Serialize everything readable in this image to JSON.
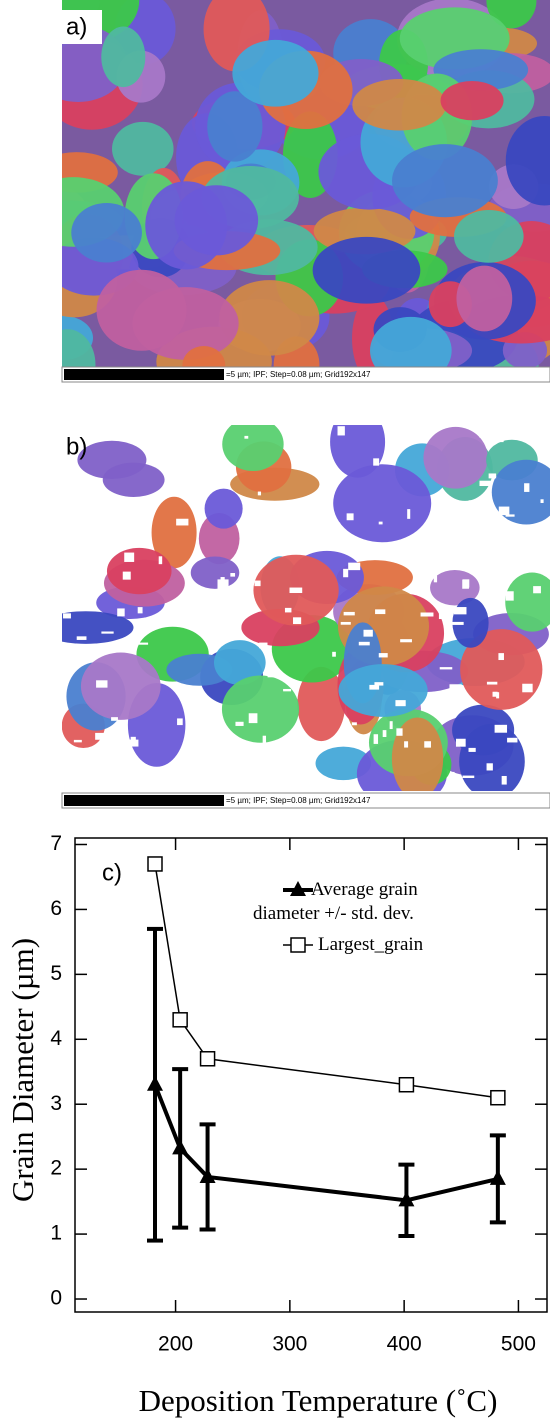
{
  "panels": [
    {
      "label": "a)",
      "scale_bar": "=5 µm; IPF; Step=0.08 µm; Grid192x147"
    },
    {
      "label": "b)",
      "scale_bar": "=5 µm; IPF; Step=0.08 µm; Grid192x147"
    }
  ],
  "chart_data": {
    "type": "line",
    "label": "c)",
    "x_label": "Deposition Temperature (˚C)",
    "y_label": "Grain Diameter (µm)",
    "x": [
      182,
      204,
      228,
      402,
      482
    ],
    "xlim": [
      112,
      525
    ],
    "ylim": [
      -0.2,
      7.1
    ],
    "xticks": [
      200,
      300,
      400,
      500
    ],
    "yticks": [
      0,
      1,
      2,
      3,
      4,
      5,
      6,
      7
    ],
    "series": [
      {
        "name": "Average grain diameter +/- std. dev.",
        "color": "#000000",
        "marker": "triangle",
        "values": [
          3.3,
          2.32,
          1.88,
          1.52,
          1.85
        ],
        "errors": [
          2.4,
          1.22,
          0.81,
          0.55,
          0.67
        ]
      },
      {
        "name": "Largest_grain",
        "color": "#000000",
        "marker": "open-square",
        "values": [
          6.7,
          4.3,
          3.7,
          3.3,
          3.1
        ]
      }
    ]
  }
}
